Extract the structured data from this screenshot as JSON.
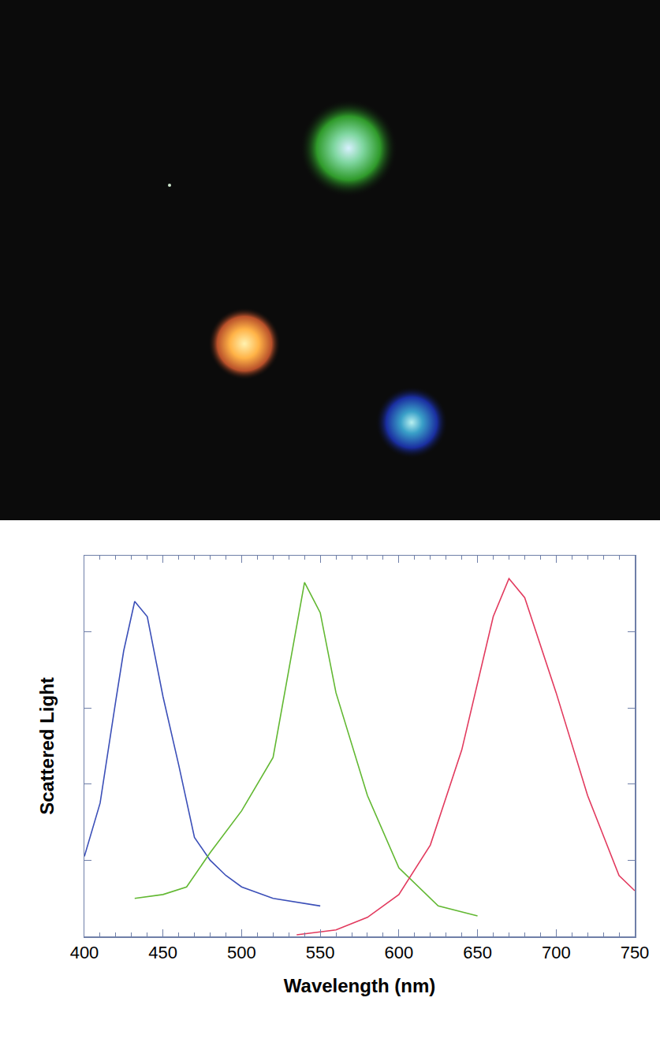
{
  "chart_data": {
    "type": "line",
    "x_label": "Wavelength (nm)",
    "y_label": "Scattered Light",
    "xlim": [
      400,
      750
    ],
    "xticks": [
      400,
      450,
      500,
      550,
      600,
      650,
      700,
      750
    ],
    "ylim": [
      0,
      1
    ],
    "yticks": [
      0,
      0.2,
      0.4,
      0.6,
      0.8,
      1
    ],
    "tick_labels": "x",
    "grid": false,
    "series": [
      {
        "color": "#3b4fb8",
        "x": [
          400,
          410,
          420,
          425,
          432,
          440,
          450,
          460,
          470,
          480,
          490,
          500,
          520,
          550
        ],
        "values": [
          0.21,
          0.35,
          0.62,
          0.75,
          0.88,
          0.84,
          0.63,
          0.45,
          0.26,
          0.2,
          0.16,
          0.13,
          0.1,
          0.08
        ]
      },
      {
        "color": "#62b832",
        "x": [
          432,
          450,
          465,
          480,
          500,
          520,
          530,
          540,
          550,
          560,
          580,
          600,
          625,
          650
        ],
        "values": [
          0.1,
          0.11,
          0.13,
          0.22,
          0.33,
          0.47,
          0.7,
          0.93,
          0.85,
          0.64,
          0.37,
          0.18,
          0.08,
          0.054
        ]
      },
      {
        "color": "#e23a5e",
        "x": [
          535,
          560,
          580,
          600,
          620,
          640,
          660,
          670,
          680,
          700,
          720,
          740,
          750
        ],
        "values": [
          0.004,
          0.017,
          0.05,
          0.11,
          0.24,
          0.49,
          0.84,
          0.94,
          0.89,
          0.64,
          0.37,
          0.16,
          0.12
        ]
      }
    ]
  }
}
